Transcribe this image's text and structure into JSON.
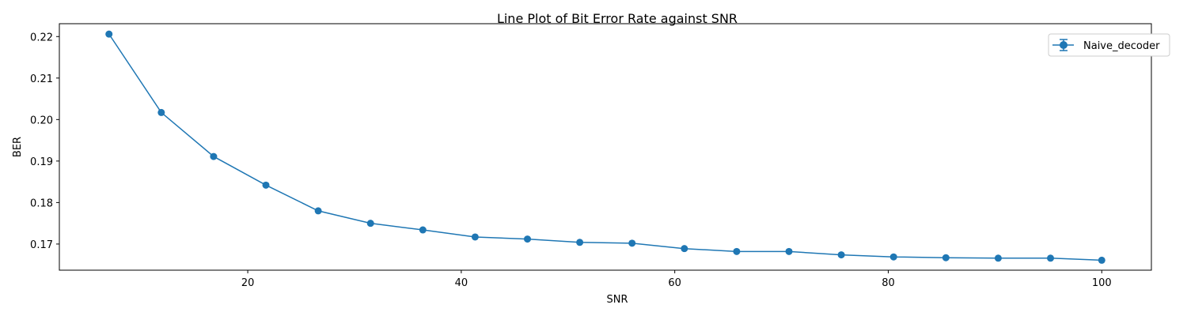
{
  "chart_data": {
    "type": "line",
    "title": "Line Plot of Bit Error Rate against SNR",
    "xlabel": "SNR",
    "ylabel": "BER",
    "xlim": [
      2.35,
      104.65
    ],
    "ylim": [
      0.1637,
      0.2231
    ],
    "xticks": [
      20,
      40,
      60,
      80,
      100
    ],
    "yticks": [
      0.17,
      0.18,
      0.19,
      0.2,
      0.21,
      0.22
    ],
    "ytick_labels": [
      "0.17",
      "0.18",
      "0.19",
      "0.20",
      "0.21",
      "0.22"
    ],
    "grid": false,
    "legend_position": "top-right",
    "series": [
      {
        "name": "Naive_decoder",
        "color": "#1f77b4",
        "marker": "circle",
        "error_bars": true,
        "x": [
          7.0,
          11.9,
          16.8,
          21.7,
          26.6,
          31.5,
          36.4,
          41.3,
          46.2,
          51.1,
          56.0,
          60.9,
          65.8,
          70.7,
          75.6,
          80.5,
          85.4,
          90.3,
          95.2,
          100.0
        ],
        "y": [
          0.2206,
          0.2017,
          0.1911,
          0.1842,
          0.178,
          0.175,
          0.1734,
          0.1717,
          0.1712,
          0.1704,
          0.1702,
          0.1689,
          0.1682,
          0.1682,
          0.1674,
          0.1669,
          0.1667,
          0.1666,
          0.1666,
          0.1661
        ]
      }
    ]
  }
}
